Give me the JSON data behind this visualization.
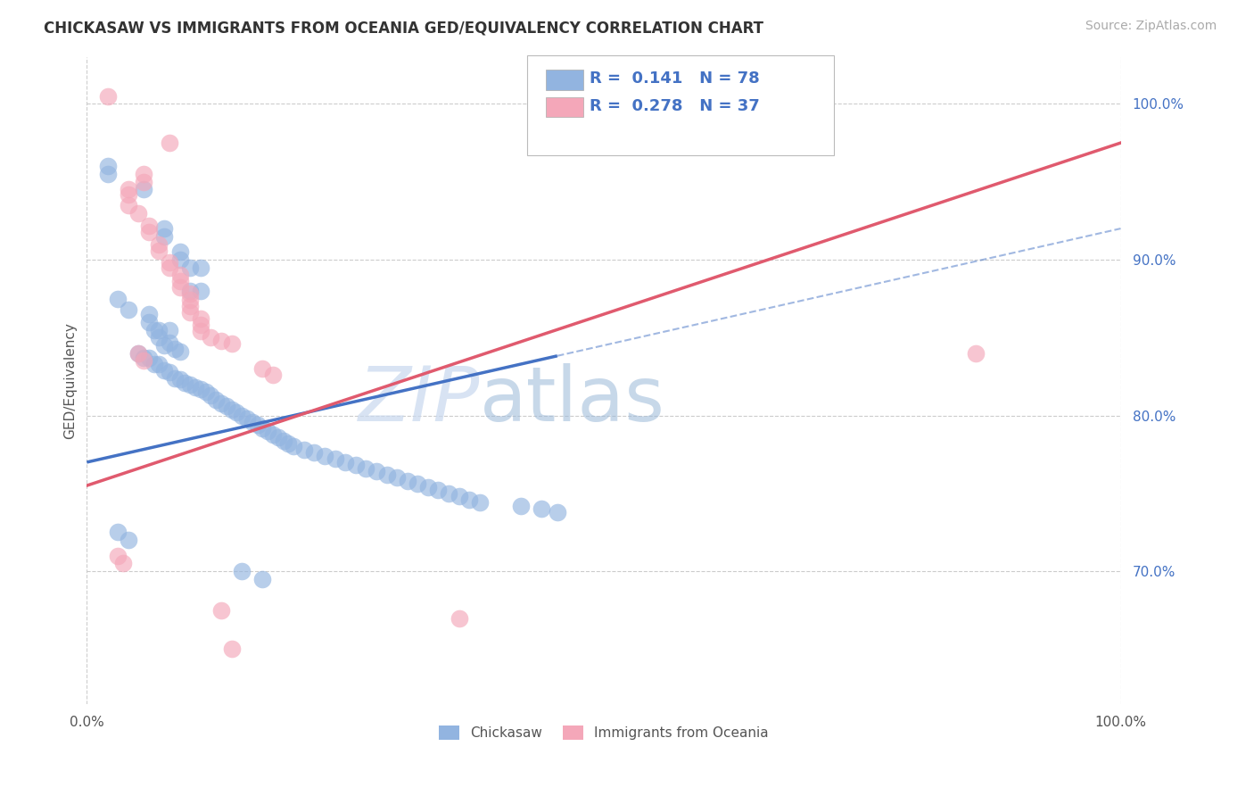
{
  "title": "CHICKASAW VS IMMIGRANTS FROM OCEANIA GED/EQUIVALENCY CORRELATION CHART",
  "source_text": "Source: ZipAtlas.com",
  "ylabel": "GED/Equivalency",
  "xlim": [
    0.0,
    1.0
  ],
  "ylim": [
    0.615,
    1.03
  ],
  "ytick_right_labels": [
    "100.0%",
    "90.0%",
    "80.0%",
    "70.0%"
  ],
  "ytick_right_values": [
    1.0,
    0.9,
    0.8,
    0.7
  ],
  "blue_line_color": "#4472c4",
  "pink_line_color": "#e05a6e",
  "blue_color": "#92b4e0",
  "pink_color": "#f4a7b9",
  "watermark_zip": "ZIP",
  "watermark_atlas": "atlas",
  "blue_solid_xlim": [
    0.0,
    0.455
  ],
  "blue_dash_xlim": [
    0.455,
    1.0
  ],
  "blue_line_start_y": 0.77,
  "blue_line_end_y": 0.92,
  "pink_line_start_y": 0.755,
  "pink_line_end_y": 0.975,
  "blue_scatter": [
    [
      0.02,
      0.96
    ],
    [
      0.02,
      0.955
    ],
    [
      0.055,
      0.945
    ],
    [
      0.075,
      0.92
    ],
    [
      0.075,
      0.915
    ],
    [
      0.09,
      0.905
    ],
    [
      0.09,
      0.9
    ],
    [
      0.1,
      0.895
    ],
    [
      0.1,
      0.88
    ],
    [
      0.11,
      0.895
    ],
    [
      0.11,
      0.88
    ],
    [
      0.03,
      0.875
    ],
    [
      0.04,
      0.868
    ],
    [
      0.06,
      0.865
    ],
    [
      0.06,
      0.86
    ],
    [
      0.065,
      0.855
    ],
    [
      0.07,
      0.855
    ],
    [
      0.07,
      0.85
    ],
    [
      0.075,
      0.845
    ],
    [
      0.08,
      0.855
    ],
    [
      0.08,
      0.847
    ],
    [
      0.085,
      0.843
    ],
    [
      0.09,
      0.841
    ],
    [
      0.05,
      0.84
    ],
    [
      0.055,
      0.837
    ],
    [
      0.06,
      0.837
    ],
    [
      0.065,
      0.833
    ],
    [
      0.07,
      0.833
    ],
    [
      0.075,
      0.829
    ],
    [
      0.08,
      0.828
    ],
    [
      0.085,
      0.824
    ],
    [
      0.09,
      0.823
    ],
    [
      0.095,
      0.821
    ],
    [
      0.1,
      0.82
    ],
    [
      0.105,
      0.818
    ],
    [
      0.11,
      0.817
    ],
    [
      0.115,
      0.815
    ],
    [
      0.12,
      0.813
    ],
    [
      0.125,
      0.81
    ],
    [
      0.13,
      0.808
    ],
    [
      0.135,
      0.806
    ],
    [
      0.14,
      0.804
    ],
    [
      0.145,
      0.802
    ],
    [
      0.15,
      0.8
    ],
    [
      0.155,
      0.798
    ],
    [
      0.16,
      0.796
    ],
    [
      0.165,
      0.794
    ],
    [
      0.17,
      0.792
    ],
    [
      0.175,
      0.79
    ],
    [
      0.18,
      0.788
    ],
    [
      0.185,
      0.786
    ],
    [
      0.19,
      0.784
    ],
    [
      0.195,
      0.782
    ],
    [
      0.2,
      0.78
    ],
    [
      0.21,
      0.778
    ],
    [
      0.22,
      0.776
    ],
    [
      0.23,
      0.774
    ],
    [
      0.24,
      0.772
    ],
    [
      0.25,
      0.77
    ],
    [
      0.26,
      0.768
    ],
    [
      0.27,
      0.766
    ],
    [
      0.28,
      0.764
    ],
    [
      0.29,
      0.762
    ],
    [
      0.3,
      0.76
    ],
    [
      0.31,
      0.758
    ],
    [
      0.32,
      0.756
    ],
    [
      0.33,
      0.754
    ],
    [
      0.34,
      0.752
    ],
    [
      0.35,
      0.75
    ],
    [
      0.36,
      0.748
    ],
    [
      0.37,
      0.746
    ],
    [
      0.38,
      0.744
    ],
    [
      0.42,
      0.742
    ],
    [
      0.44,
      0.74
    ],
    [
      0.455,
      0.738
    ],
    [
      0.03,
      0.725
    ],
    [
      0.04,
      0.72
    ],
    [
      0.15,
      0.7
    ],
    [
      0.17,
      0.695
    ]
  ],
  "pink_scatter": [
    [
      0.02,
      1.005
    ],
    [
      0.08,
      0.975
    ],
    [
      0.055,
      0.955
    ],
    [
      0.055,
      0.95
    ],
    [
      0.04,
      0.945
    ],
    [
      0.04,
      0.942
    ],
    [
      0.04,
      0.935
    ],
    [
      0.05,
      0.93
    ],
    [
      0.06,
      0.922
    ],
    [
      0.06,
      0.918
    ],
    [
      0.07,
      0.91
    ],
    [
      0.07,
      0.906
    ],
    [
      0.08,
      0.898
    ],
    [
      0.08,
      0.895
    ],
    [
      0.09,
      0.89
    ],
    [
      0.09,
      0.886
    ],
    [
      0.09,
      0.882
    ],
    [
      0.1,
      0.878
    ],
    [
      0.1,
      0.874
    ],
    [
      0.1,
      0.87
    ],
    [
      0.1,
      0.866
    ],
    [
      0.11,
      0.862
    ],
    [
      0.11,
      0.858
    ],
    [
      0.11,
      0.854
    ],
    [
      0.12,
      0.85
    ],
    [
      0.13,
      0.848
    ],
    [
      0.14,
      0.846
    ],
    [
      0.05,
      0.84
    ],
    [
      0.055,
      0.835
    ],
    [
      0.17,
      0.83
    ],
    [
      0.18,
      0.826
    ],
    [
      0.03,
      0.71
    ],
    [
      0.035,
      0.705
    ],
    [
      0.13,
      0.675
    ],
    [
      0.36,
      0.67
    ],
    [
      0.14,
      0.65
    ],
    [
      0.86,
      0.84
    ]
  ]
}
